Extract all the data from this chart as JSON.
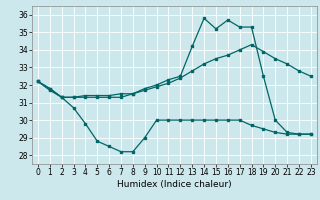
{
  "xlabel": "Humidex (Indice chaleur)",
  "bg_color": "#cde8ed",
  "grid_color": "#ffffff",
  "line_color": "#006666",
  "xlim": [
    -0.5,
    23.5
  ],
  "ylim": [
    27.5,
    36.5
  ],
  "yticks": [
    28,
    29,
    30,
    31,
    32,
    33,
    34,
    35,
    36
  ],
  "xticks": [
    0,
    1,
    2,
    3,
    4,
    5,
    6,
    7,
    8,
    9,
    10,
    11,
    12,
    13,
    14,
    15,
    16,
    17,
    18,
    19,
    20,
    21,
    22,
    23
  ],
  "curve1_x": [
    0,
    1,
    2,
    3,
    4,
    5,
    6,
    7,
    8,
    9,
    10,
    11,
    12,
    13,
    14,
    15,
    16,
    17,
    18,
    19,
    20,
    21,
    22,
    23
  ],
  "curve1_y": [
    32.2,
    31.8,
    31.3,
    30.7,
    29.8,
    28.8,
    28.5,
    28.2,
    28.2,
    29.0,
    30.0,
    30.0,
    30.0,
    30.0,
    30.0,
    30.0,
    30.0,
    30.0,
    29.7,
    29.5,
    29.3,
    29.2,
    29.2,
    29.2
  ],
  "curve2_x": [
    0,
    1,
    2,
    3,
    4,
    5,
    6,
    7,
    8,
    9,
    10,
    11,
    12,
    13,
    14,
    15,
    16,
    17,
    18,
    19,
    20,
    21,
    22,
    23
  ],
  "curve2_y": [
    32.2,
    31.7,
    31.3,
    31.3,
    31.4,
    31.4,
    31.4,
    31.5,
    31.5,
    31.7,
    31.9,
    32.1,
    32.4,
    32.8,
    33.2,
    33.5,
    33.7,
    34.0,
    34.3,
    33.9,
    33.5,
    33.2,
    32.8,
    32.5
  ],
  "curve3_x": [
    0,
    1,
    2,
    3,
    4,
    5,
    6,
    7,
    8,
    9,
    10,
    11,
    12,
    13,
    14,
    15,
    16,
    17,
    18,
    19,
    20,
    21,
    22,
    23
  ],
  "curve3_y": [
    32.2,
    31.8,
    31.3,
    31.3,
    31.3,
    31.3,
    31.3,
    31.3,
    31.5,
    31.8,
    32.0,
    32.3,
    32.5,
    34.2,
    35.8,
    35.2,
    35.7,
    35.3,
    35.3,
    32.5,
    30.0,
    29.3,
    29.2,
    29.2
  ]
}
